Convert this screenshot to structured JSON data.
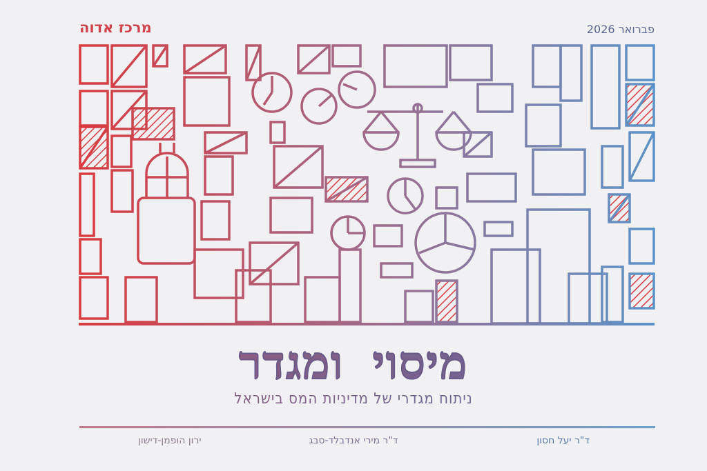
{
  "header": {
    "publisher": "מרכז אדוה",
    "date": "פברואר 2026"
  },
  "title": "מיסוי ומגדר",
  "subtitle": "ניתוח מגדרי של מדיניות המס בישראל",
  "authors": [
    "ד\"ר יעל חסון",
    "ד\"ר מירי אנדבלד-סבג",
    "ירון הופמן-דישון"
  ],
  "colors": {
    "gradient_start": "#d93a3f",
    "gradient_end": "#5b93c8",
    "brand": "#d0434d"
  },
  "illustration": {
    "icons": [
      "scale-icon",
      "pie-chart-icon",
      "clock-icon",
      "building-icon",
      "bottle-icon"
    ]
  }
}
